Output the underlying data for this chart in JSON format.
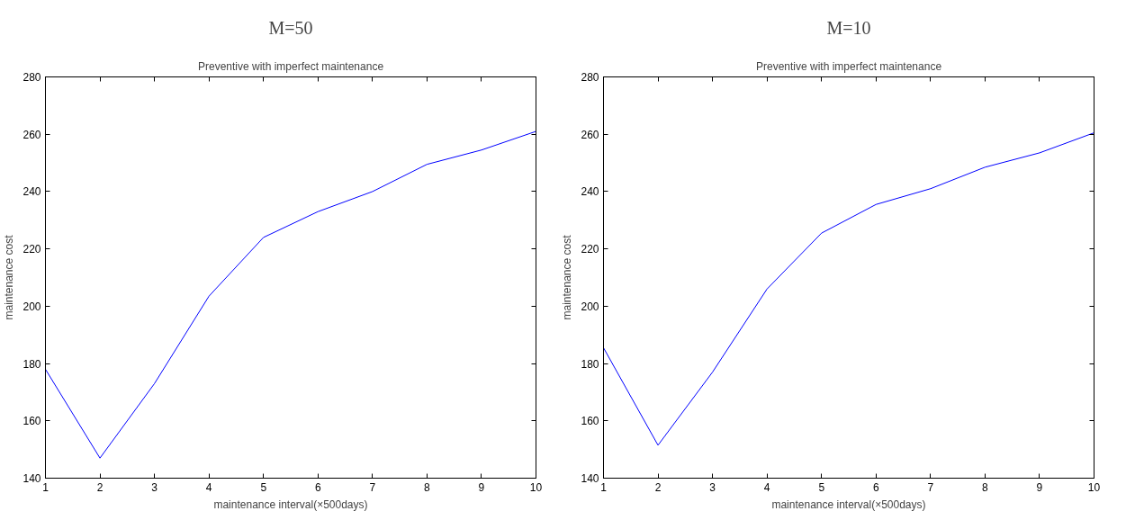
{
  "chart_data": [
    {
      "type": "line",
      "subtitle": "M=50",
      "title": "Preventive with imperfect maintenance",
      "xlabel": "maintenance interval(×500days)",
      "ylabel": "maintenance cost",
      "x": [
        1,
        2,
        3,
        4,
        5,
        6,
        7,
        8,
        9,
        10
      ],
      "series": [
        {
          "color": "#0000ff",
          "values": [
            178,
            147,
            173,
            203.5,
            224,
            233,
            240,
            249.5,
            254.5,
            261
          ]
        }
      ],
      "xlim": [
        1,
        10
      ],
      "xticks": [
        1,
        2,
        3,
        4,
        5,
        6,
        7,
        8,
        9,
        10
      ],
      "ylim": [
        140,
        280
      ],
      "yticks": [
        140,
        160,
        180,
        200,
        220,
        240,
        260,
        280
      ]
    },
    {
      "type": "line",
      "subtitle": "M=10",
      "title": "Preventive with imperfect maintenance",
      "xlabel": "maintenance interval(×500days)",
      "ylabel": "maintenance cost",
      "x": [
        1,
        2,
        3,
        4,
        5,
        6,
        7,
        8,
        9,
        10
      ],
      "series": [
        {
          "color": "#0000ff",
          "values": [
            185.5,
            151.5,
            177,
            206,
            225.5,
            235.5,
            241,
            248.5,
            253.5,
            260.5
          ]
        }
      ],
      "xlim": [
        1,
        10
      ],
      "xticks": [
        1,
        2,
        3,
        4,
        5,
        6,
        7,
        8,
        9,
        10
      ],
      "ylim": [
        140,
        280
      ],
      "yticks": [
        140,
        160,
        180,
        200,
        220,
        240,
        260,
        280
      ]
    }
  ]
}
